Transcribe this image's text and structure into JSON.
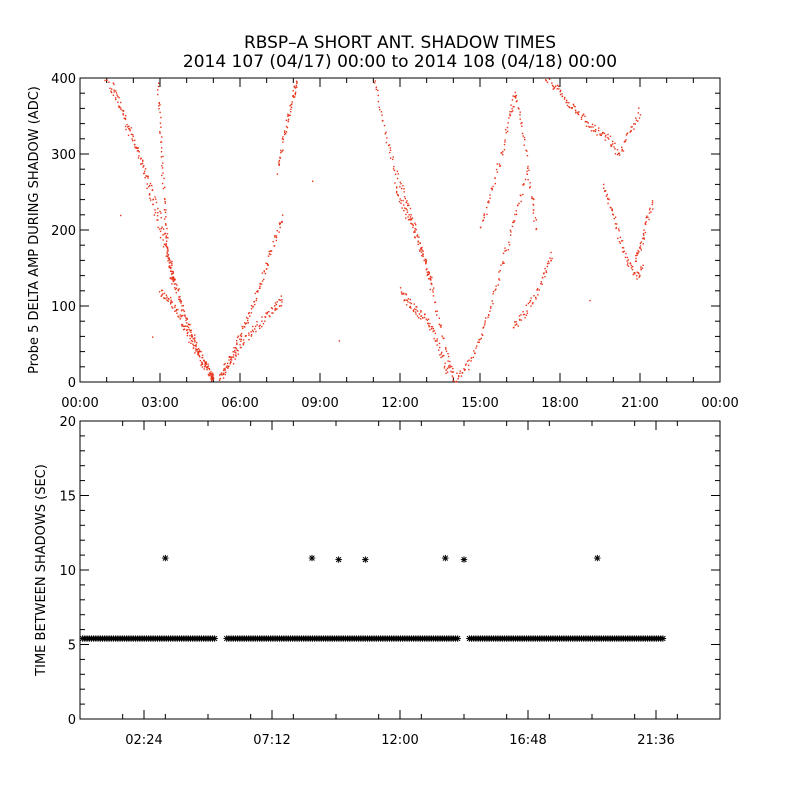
{
  "title": {
    "line1": "RBSP–A SHORT ANT. SHADOW TIMES",
    "line2": "2014 107 (04/17) 00:00 to 2014 108 (04/18) 00:00"
  },
  "colors": {
    "points": "#e8341c",
    "axes": "#000000",
    "stars": "#000000"
  },
  "chart_data": [
    {
      "type": "scatter",
      "title": "",
      "xlabel": "",
      "ylabel": "Probe 5 DELTA AMP DURING SHADOW (ADC)",
      "xlim": [
        0,
        24
      ],
      "ylim": [
        0,
        400
      ],
      "x_ticks": [
        0,
        3,
        6,
        9,
        12,
        15,
        18,
        21,
        24
      ],
      "x_tick_labels": [
        "00:00",
        "03:00",
        "06:00",
        "09:00",
        "12:00",
        "15:00",
        "18:00",
        "21:00",
        "00:00"
      ],
      "y_ticks": [
        0,
        100,
        200,
        300,
        400
      ],
      "y_tick_labels": [
        "0",
        "100",
        "200",
        "300",
        "400"
      ],
      "series": [
        {
          "color": "#e8341c",
          "tracks": [
            {
              "x": [
                0.9,
                1.4,
                1.9,
                2.4,
                2.9,
                3.3,
                3.7,
                4.1,
                4.5,
                4.9,
                5.0
              ],
              "y": [
                400,
                370,
                330,
                280,
                230,
                170,
                110,
                70,
                35,
                10,
                3
              ]
            },
            {
              "x": [
                1.2,
                1.7,
                2.2,
                2.6,
                3.0,
                3.4,
                3.8,
                4.2,
                4.6,
                5.0
              ],
              "y": [
                395,
                340,
                300,
                250,
                200,
                150,
                100,
                60,
                25,
                5
              ]
            },
            {
              "x": [
                2.9,
                3.0,
                3.1,
                3.2,
                3.3,
                3.4,
                3.5
              ],
              "y": [
                390,
                330,
                260,
                200,
                160,
                140,
                130
              ]
            },
            {
              "x": [
                3.0,
                3.3,
                3.6,
                3.9,
                4.2,
                4.6,
                5.0
              ],
              "y": [
                120,
                110,
                95,
                75,
                50,
                25,
                5
              ]
            },
            {
              "x": [
                5.2,
                5.5,
                5.8,
                6.1,
                6.4,
                6.7,
                7.0,
                7.3,
                7.6
              ],
              "y": [
                5,
                25,
                45,
                70,
                95,
                125,
                155,
                190,
                220
              ]
            },
            {
              "x": [
                5.3,
                5.7,
                6.1,
                6.5,
                6.9,
                7.3,
                7.6
              ],
              "y": [
                10,
                30,
                55,
                70,
                85,
                100,
                110
              ]
            },
            {
              "x": [
                7.4,
                7.6,
                7.8,
                8.0,
                8.1
              ],
              "y": [
                280,
                320,
                350,
                380,
                400
              ]
            },
            {
              "x": [
                11.0,
                11.4,
                11.8,
                12.2,
                12.6,
                13.0,
                13.4,
                13.8,
                14.0
              ],
              "y": [
                400,
                330,
                280,
                240,
                200,
                150,
                90,
                30,
                3
              ]
            },
            {
              "x": [
                12.0,
                12.3,
                12.6,
                12.9,
                13.2,
                13.5,
                13.8
              ],
              "y": [
                120,
                105,
                95,
                85,
                70,
                40,
                10
              ]
            },
            {
              "x": [
                11.8,
                12.1,
                12.4,
                12.7,
                13.0,
                13.2
              ],
              "y": [
                260,
                230,
                210,
                180,
                150,
                130
              ]
            },
            {
              "x": [
                14.0,
                14.4,
                14.8,
                15.2,
                15.6,
                16.0,
                16.4,
                16.8
              ],
              "y": [
                3,
                15,
                40,
                80,
                130,
                180,
                230,
                280
              ]
            },
            {
              "x": [
                15.0,
                15.4,
                15.8,
                16.1,
                16.3,
                16.6,
                16.9,
                17.1
              ],
              "y": [
                200,
                250,
                300,
                350,
                380,
                330,
                250,
                200
              ]
            },
            {
              "x": [
                16.2,
                16.6,
                17.0,
                17.4,
                17.7
              ],
              "y": [
                70,
                90,
                110,
                140,
                170
              ]
            },
            {
              "x": [
                17.4,
                17.8,
                18.2,
                18.6,
                19.0,
                19.4,
                19.8,
                20.2,
                20.6,
                21.0
              ],
              "y": [
                400,
                390,
                370,
                360,
                340,
                330,
                320,
                300,
                330,
                360
              ]
            },
            {
              "x": [
                19.6,
                19.9,
                20.2,
                20.5,
                20.8,
                21.1
              ],
              "y": [
                260,
                230,
                190,
                160,
                140,
                150
              ]
            },
            {
              "x": [
                20.8,
                21.0,
                21.2,
                21.5
              ],
              "y": [
                160,
                180,
                210,
                240
              ]
            }
          ],
          "isolated_points": [
            {
              "x": 1.5,
              "y": 220
            },
            {
              "x": 2.7,
              "y": 60
            },
            {
              "x": 8.7,
              "y": 265
            },
            {
              "x": 9.7,
              "y": 55
            },
            {
              "x": 19.1,
              "y": 108
            }
          ]
        }
      ]
    },
    {
      "type": "scatter",
      "title": "",
      "xlabel": "",
      "ylabel": "TIME BETWEEN SHADOWS (SEC)",
      "xlim": [
        0,
        24
      ],
      "ylim": [
        0,
        20
      ],
      "x_ticks": [
        2.4,
        7.2,
        12.0,
        16.8,
        21.6
      ],
      "x_tick_labels": [
        "02:24",
        "07:12",
        "12:00",
        "16:48",
        "21:36"
      ],
      "y_ticks": [
        0,
        5,
        10,
        15,
        20
      ],
      "y_tick_labels": [
        "0",
        "5",
        "10",
        "15",
        "20"
      ],
      "series": [
        {
          "marker": "*",
          "baseline_value": 5.4,
          "baseline_segments": [
            [
              0.1,
              5.1
            ],
            [
              5.5,
              14.2
            ],
            [
              14.6,
              21.9
            ]
          ],
          "points": [
            {
              "x": 3.2,
              "y": 10.8
            },
            {
              "x": 8.7,
              "y": 10.8
            },
            {
              "x": 9.7,
              "y": 10.7
            },
            {
              "x": 10.7,
              "y": 10.7
            },
            {
              "x": 13.7,
              "y": 10.8
            },
            {
              "x": 14.4,
              "y": 10.7
            },
            {
              "x": 19.4,
              "y": 10.8
            }
          ]
        }
      ]
    }
  ]
}
